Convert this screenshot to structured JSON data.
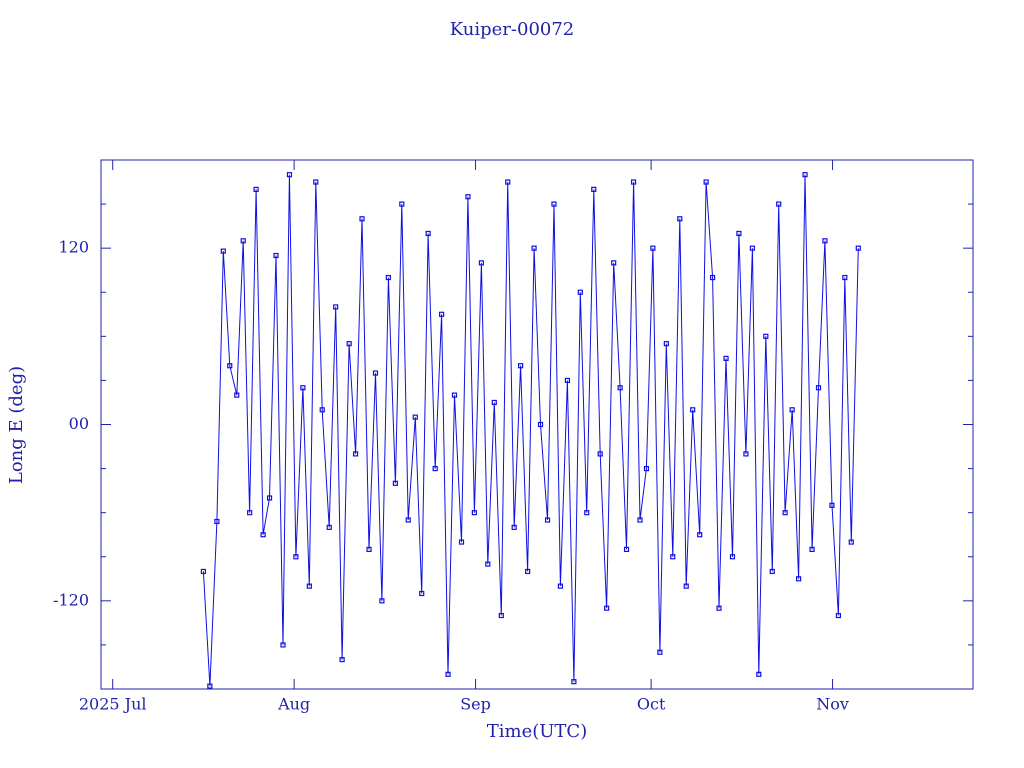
{
  "chart_data": {
    "type": "line",
    "title": "Kuiper-00072",
    "xlabel": "Time(UTC)",
    "ylabel": "Long E (deg)",
    "color": "#1010e0",
    "axis_color": "#2222aa",
    "xlim": [
      180,
      329
    ],
    "xticks": [
      {
        "value": 182,
        "label": "2025 Jul"
      },
      {
        "value": 213,
        "label": "Aug"
      },
      {
        "value": 244,
        "label": "Sep"
      },
      {
        "value": 274,
        "label": "Oct"
      },
      {
        "value": 305,
        "label": "Nov"
      }
    ],
    "ylim": [
      -180,
      180
    ],
    "yticks": [
      -120,
      {
        "value": 0,
        "label": "00"
      },
      120
    ],
    "yminorticks": [
      -150,
      -90,
      -60,
      -30,
      30,
      60,
      90,
      150
    ],
    "x": [
      197.5,
      198.6,
      199.8,
      200.9,
      202.0,
      203.2,
      204.3,
      205.4,
      206.5,
      207.7,
      208.8,
      209.9,
      211.1,
      212.2,
      213.3,
      214.5,
      215.6,
      216.7,
      217.8,
      219.0,
      220.1,
      221.2,
      222.4,
      223.5,
      224.6,
      225.8,
      226.9,
      228.0,
      229.1,
      230.3,
      231.4,
      232.5,
      233.7,
      234.8,
      235.9,
      237.1,
      238.2,
      239.3,
      240.4,
      241.6,
      242.7,
      243.8,
      245.0,
      246.1,
      247.2,
      248.4,
      249.5,
      250.6,
      251.7,
      252.9,
      254.0,
      255.1,
      256.3,
      257.4,
      258.5,
      259.7,
      260.8,
      261.9,
      263.0,
      264.2,
      265.3,
      266.4,
      267.6,
      268.7,
      269.8,
      271.0,
      272.1,
      273.2,
      274.3,
      275.5,
      276.6,
      277.7,
      278.9,
      280.0,
      281.1,
      282.3,
      283.4,
      284.5,
      285.6,
      286.8,
      287.9,
      289.0,
      290.2,
      291.3,
      292.4,
      293.6,
      294.7,
      295.8,
      296.9,
      298.1,
      299.2,
      300.3,
      301.5,
      302.6,
      303.7,
      304.9,
      306.0,
      307.1,
      308.2,
      309.4
    ],
    "values": [
      -100,
      -178,
      -66,
      118,
      40,
      20,
      125,
      -60,
      160,
      -75,
      -50,
      115,
      -150,
      170,
      -90,
      25,
      -110,
      165,
      10,
      -70,
      80,
      -160,
      55,
      -20,
      140,
      -85,
      35,
      -120,
      100,
      -40,
      150,
      -65,
      5,
      -115,
      130,
      -30,
      75,
      -170,
      20,
      -80,
      155,
      -60,
      110,
      -95,
      15,
      -130,
      165,
      -70,
      40,
      -100,
      120,
      0,
      -65,
      150,
      -110,
      30,
      -175,
      90,
      -60,
      160,
      -20,
      -125,
      110,
      25,
      -85,
      165,
      -65,
      -30,
      120,
      -155,
      55,
      -90,
      140,
      -110,
      10,
      -75,
      165,
      100,
      -125,
      45,
      -90,
      130,
      -20,
      120,
      -170,
      60,
      -100,
      150,
      -60,
      10,
      -105,
      170,
      -85,
      25,
      125,
      -55,
      -130,
      100,
      -80,
      120
    ]
  }
}
